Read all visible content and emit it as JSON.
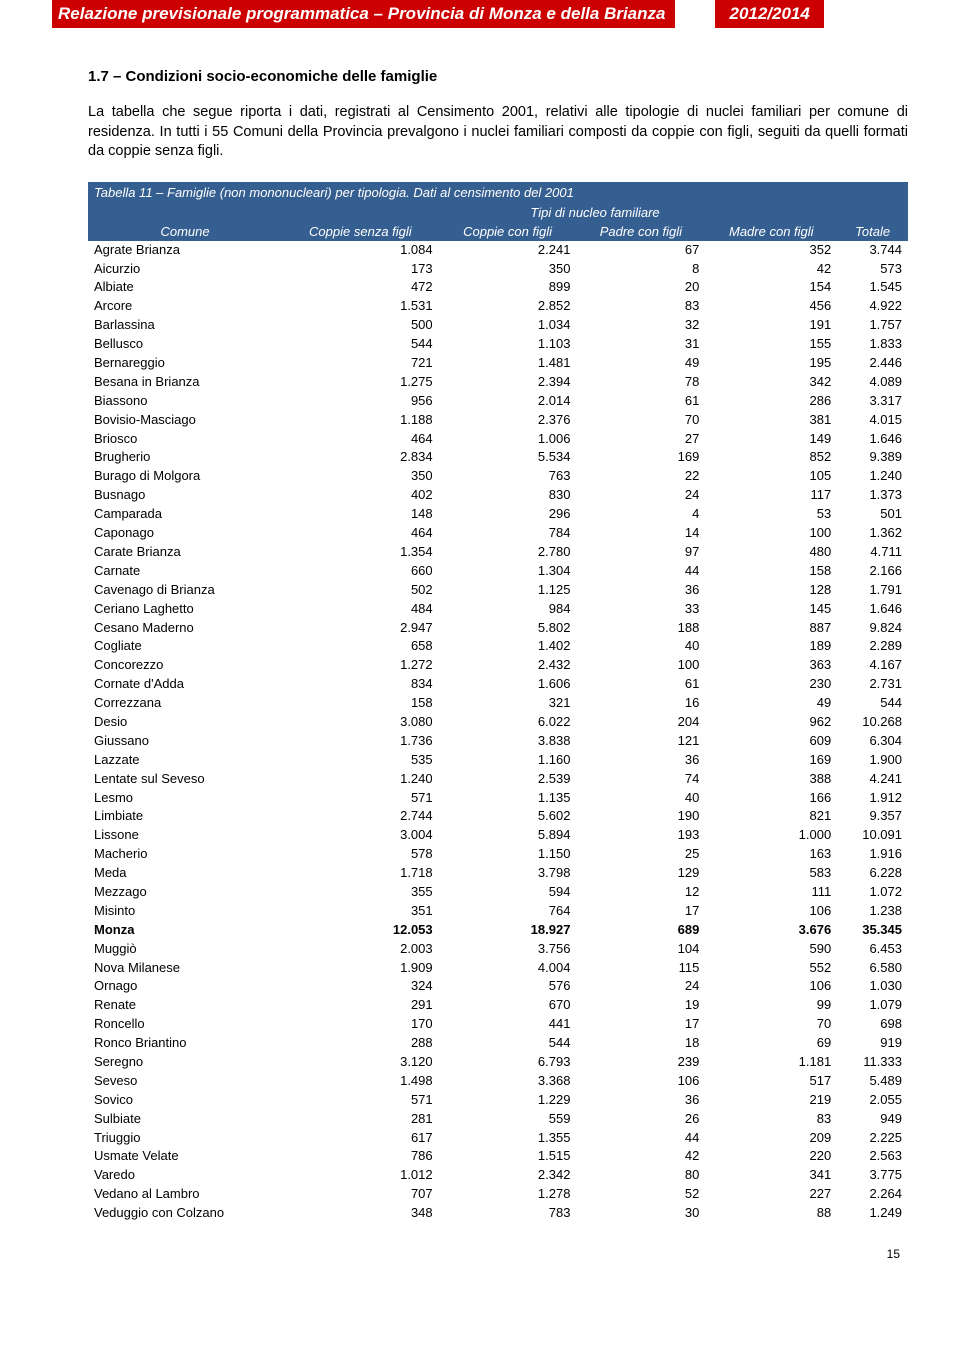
{
  "header": {
    "title_left": "Relazione previsionale programmatica – Provincia di Monza e della Brianza",
    "title_right": "2012/2014",
    "bg_color": "#cc0000",
    "text_color": "#ffffff"
  },
  "section": {
    "title": "1.7 – Condizioni socio-economiche delle famiglie",
    "paragraph": "La tabella che segue riporta i dati, registrati al Censimento 2001, relativi alle tipologie di nuclei familiari per comune di residenza. In tutti i 55 Comuni della Provincia prevalgono i nuclei familiari composti da coppie con figli, seguiti da quelli formati da coppie senza figli."
  },
  "table": {
    "caption": "Tabella 11 – Famiglie (non mononucleari) per tipologia. Dati al censimento del 2001",
    "header_bg": "#365f91",
    "header_fg": "#ffffff",
    "col_comune": "Comune",
    "col_group": "Tipi di nucleo familiare",
    "columns": [
      "Coppie senza figli",
      "Coppie con figli",
      "Padre con figli",
      "Madre con figli",
      "Totale"
    ],
    "rows": [
      {
        "c": "Agrate Brianza",
        "v": [
          "1.084",
          "2.241",
          "67",
          "352",
          "3.744"
        ]
      },
      {
        "c": "Aicurzio",
        "v": [
          "173",
          "350",
          "8",
          "42",
          "573"
        ]
      },
      {
        "c": "Albiate",
        "v": [
          "472",
          "899",
          "20",
          "154",
          "1.545"
        ]
      },
      {
        "c": "Arcore",
        "v": [
          "1.531",
          "2.852",
          "83",
          "456",
          "4.922"
        ]
      },
      {
        "c": "Barlassina",
        "v": [
          "500",
          "1.034",
          "32",
          "191",
          "1.757"
        ]
      },
      {
        "c": "Bellusco",
        "v": [
          "544",
          "1.103",
          "31",
          "155",
          "1.833"
        ]
      },
      {
        "c": "Bernareggio",
        "v": [
          "721",
          "1.481",
          "49",
          "195",
          "2.446"
        ]
      },
      {
        "c": "Besana in Brianza",
        "v": [
          "1.275",
          "2.394",
          "78",
          "342",
          "4.089"
        ]
      },
      {
        "c": "Biassono",
        "v": [
          "956",
          "2.014",
          "61",
          "286",
          "3.317"
        ]
      },
      {
        "c": "Bovisio-Masciago",
        "v": [
          "1.188",
          "2.376",
          "70",
          "381",
          "4.015"
        ]
      },
      {
        "c": "Briosco",
        "v": [
          "464",
          "1.006",
          "27",
          "149",
          "1.646"
        ]
      },
      {
        "c": "Brugherio",
        "v": [
          "2.834",
          "5.534",
          "169",
          "852",
          "9.389"
        ]
      },
      {
        "c": "Burago di Molgora",
        "v": [
          "350",
          "763",
          "22",
          "105",
          "1.240"
        ]
      },
      {
        "c": "Busnago",
        "v": [
          "402",
          "830",
          "24",
          "117",
          "1.373"
        ]
      },
      {
        "c": "Camparada",
        "v": [
          "148",
          "296",
          "4",
          "53",
          "501"
        ]
      },
      {
        "c": "Caponago",
        "v": [
          "464",
          "784",
          "14",
          "100",
          "1.362"
        ]
      },
      {
        "c": "Carate Brianza",
        "v": [
          "1.354",
          "2.780",
          "97",
          "480",
          "4.711"
        ]
      },
      {
        "c": "Carnate",
        "v": [
          "660",
          "1.304",
          "44",
          "158",
          "2.166"
        ]
      },
      {
        "c": "Cavenago di Brianza",
        "v": [
          "502",
          "1.125",
          "36",
          "128",
          "1.791"
        ]
      },
      {
        "c": "Ceriano Laghetto",
        "v": [
          "484",
          "984",
          "33",
          "145",
          "1.646"
        ]
      },
      {
        "c": "Cesano Maderno",
        "v": [
          "2.947",
          "5.802",
          "188",
          "887",
          "9.824"
        ]
      },
      {
        "c": "Cogliate",
        "v": [
          "658",
          "1.402",
          "40",
          "189",
          "2.289"
        ]
      },
      {
        "c": "Concorezzo",
        "v": [
          "1.272",
          "2.432",
          "100",
          "363",
          "4.167"
        ]
      },
      {
        "c": "Cornate d'Adda",
        "v": [
          "834",
          "1.606",
          "61",
          "230",
          "2.731"
        ]
      },
      {
        "c": "Correzzana",
        "v": [
          "158",
          "321",
          "16",
          "49",
          "544"
        ]
      },
      {
        "c": "Desio",
        "v": [
          "3.080",
          "6.022",
          "204",
          "962",
          "10.268"
        ]
      },
      {
        "c": "Giussano",
        "v": [
          "1.736",
          "3.838",
          "121",
          "609",
          "6.304"
        ]
      },
      {
        "c": "Lazzate",
        "v": [
          "535",
          "1.160",
          "36",
          "169",
          "1.900"
        ]
      },
      {
        "c": "Lentate sul Seveso",
        "v": [
          "1.240",
          "2.539",
          "74",
          "388",
          "4.241"
        ]
      },
      {
        "c": "Lesmo",
        "v": [
          "571",
          "1.135",
          "40",
          "166",
          "1.912"
        ]
      },
      {
        "c": "Limbiate",
        "v": [
          "2.744",
          "5.602",
          "190",
          "821",
          "9.357"
        ]
      },
      {
        "c": "Lissone",
        "v": [
          "3.004",
          "5.894",
          "193",
          "1.000",
          "10.091"
        ]
      },
      {
        "c": "Macherio",
        "v": [
          "578",
          "1.150",
          "25",
          "163",
          "1.916"
        ]
      },
      {
        "c": "Meda",
        "v": [
          "1.718",
          "3.798",
          "129",
          "583",
          "6.228"
        ]
      },
      {
        "c": "Mezzago",
        "v": [
          "355",
          "594",
          "12",
          "111",
          "1.072"
        ]
      },
      {
        "c": "Misinto",
        "v": [
          "351",
          "764",
          "17",
          "106",
          "1.238"
        ]
      },
      {
        "c": "Monza",
        "v": [
          "12.053",
          "18.927",
          "689",
          "3.676",
          "35.345"
        ],
        "bold": true
      },
      {
        "c": "Muggiò",
        "v": [
          "2.003",
          "3.756",
          "104",
          "590",
          "6.453"
        ]
      },
      {
        "c": "Nova Milanese",
        "v": [
          "1.909",
          "4.004",
          "115",
          "552",
          "6.580"
        ]
      },
      {
        "c": "Ornago",
        "v": [
          "324",
          "576",
          "24",
          "106",
          "1.030"
        ]
      },
      {
        "c": "Renate",
        "v": [
          "291",
          "670",
          "19",
          "99",
          "1.079"
        ]
      },
      {
        "c": "Roncello",
        "v": [
          "170",
          "441",
          "17",
          "70",
          "698"
        ]
      },
      {
        "c": "Ronco Briantino",
        "v": [
          "288",
          "544",
          "18",
          "69",
          "919"
        ]
      },
      {
        "c": "Seregno",
        "v": [
          "3.120",
          "6.793",
          "239",
          "1.181",
          "11.333"
        ]
      },
      {
        "c": "Seveso",
        "v": [
          "1.498",
          "3.368",
          "106",
          "517",
          "5.489"
        ]
      },
      {
        "c": "Sovico",
        "v": [
          "571",
          "1.229",
          "36",
          "219",
          "2.055"
        ]
      },
      {
        "c": "Sulbiate",
        "v": [
          "281",
          "559",
          "26",
          "83",
          "949"
        ]
      },
      {
        "c": "Triuggio",
        "v": [
          "617",
          "1.355",
          "44",
          "209",
          "2.225"
        ]
      },
      {
        "c": "Usmate Velate",
        "v": [
          "786",
          "1.515",
          "42",
          "220",
          "2.563"
        ]
      },
      {
        "c": "Varedo",
        "v": [
          "1.012",
          "2.342",
          "80",
          "341",
          "3.775"
        ]
      },
      {
        "c": "Vedano al Lambro",
        "v": [
          "707",
          "1.278",
          "52",
          "227",
          "2.264"
        ]
      },
      {
        "c": "Veduggio con Colzano",
        "v": [
          "348",
          "783",
          "30",
          "88",
          "1.249"
        ]
      }
    ]
  },
  "page_number": "15"
}
